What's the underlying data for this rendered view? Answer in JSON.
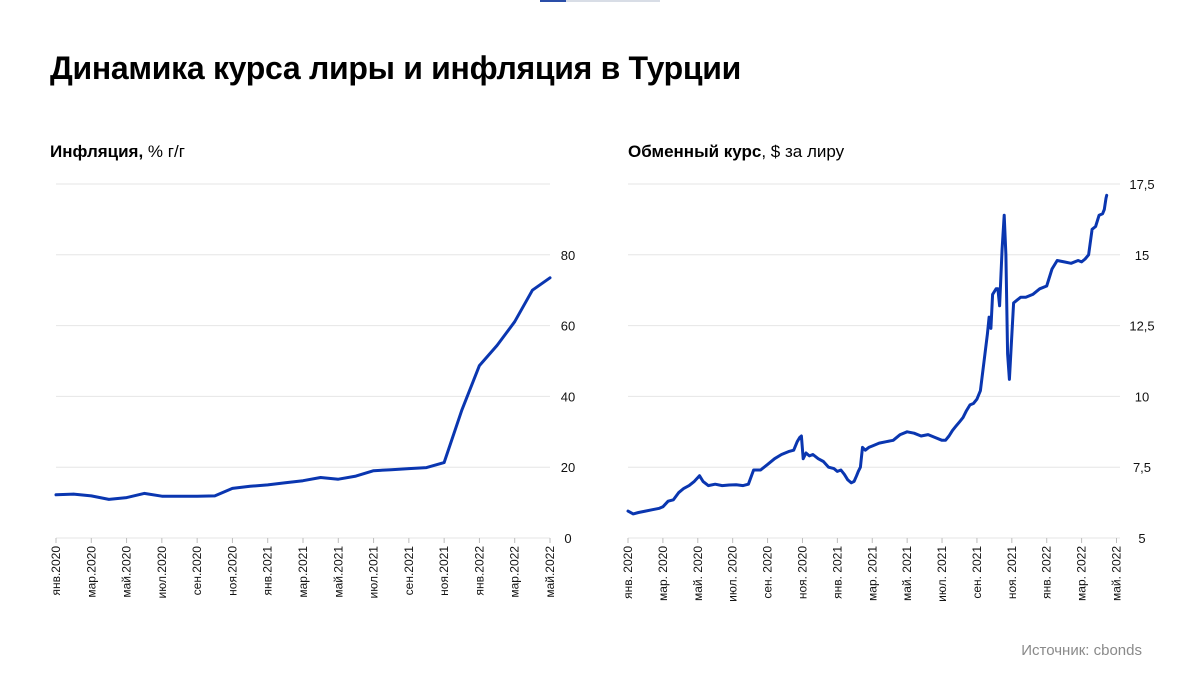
{
  "header": {
    "title": "Динамика курса лиры и инфляция в Турции"
  },
  "panels": {
    "left": {
      "title_bold": "Инфляция,",
      "title_rest": " % г/г"
    },
    "right": {
      "title_bold": "Обменный курс",
      "title_rest": ", $ за лиру"
    }
  },
  "footer": {
    "source": "Источник: cbonds"
  },
  "colors": {
    "line": "#0a36b0",
    "grid": "#e6e6e6",
    "text": "#111111",
    "muted": "#8a8a8a"
  },
  "chart_data": [
    {
      "type": "line",
      "title": "Инфляция, % г/г",
      "x_tick_labels": [
        "янв.2020",
        "мар.2020",
        "май.2020",
        "июл.2020",
        "сен.2020",
        "ноя.2020",
        "янв.2021",
        "мар.2021",
        "май.2021",
        "июл.2021",
        "сен.2021",
        "ноя.2021",
        "янв.2022",
        "мар.2022",
        "май.2022"
      ],
      "y_ticks": [
        0,
        20,
        40,
        60,
        80
      ],
      "ylim": [
        0,
        100
      ],
      "grid": "horizontal",
      "series": [
        {
          "x": [
            "янв.2020",
            "фев.2020",
            "мар.2020",
            "апр.2020",
            "май.2020",
            "июн.2020",
            "июл.2020",
            "авг.2020",
            "сен.2020",
            "окт.2020",
            "ноя.2020",
            "дек.2020",
            "янв.2021",
            "фев.2021",
            "мар.2021",
            "апр.2021",
            "май.2021",
            "июн.2021",
            "июл.2021",
            "авг.2021",
            "сен.2021",
            "окт.2021",
            "ноя.2021",
            "дек.2021",
            "янв.2022",
            "фев.2022",
            "мар.2022",
            "апр.2022",
            "май.2022"
          ],
          "values": [
            12.2,
            12.4,
            11.9,
            10.9,
            11.4,
            12.6,
            11.8,
            11.8,
            11.8,
            11.9,
            14.0,
            14.6,
            15.0,
            15.6,
            16.2,
            17.1,
            16.6,
            17.5,
            19.0,
            19.3,
            19.6,
            19.9,
            21.3,
            36.1,
            48.7,
            54.4,
            61.1,
            70.0,
            73.5
          ]
        }
      ]
    },
    {
      "type": "line",
      "title": "Обменный курс, $ за лиру",
      "x_tick_labels": [
        "янв. 2020",
        "мар. 2020",
        "май. 2020",
        "июл. 2020",
        "сен. 2020",
        "ноя. 2020",
        "янв. 2021",
        "мар. 2021",
        "май. 2021",
        "июл. 2021",
        "сен. 2021",
        "ноя. 2021",
        "янв. 2022",
        "мар. 2022",
        "май. 2022"
      ],
      "y_ticks": [
        5,
        7.5,
        10,
        12.5,
        15,
        17.5
      ],
      "y_tick_labels": [
        "5",
        "7,5",
        "10",
        "12,5",
        "15",
        "17,5"
      ],
      "ylim": [
        5,
        17.5
      ],
      "grid": "horizontal",
      "series": [
        {
          "x": [
            "янв. 2020",
            "мар. 2020",
            "май. 2020",
            "июл. 2020",
            "сен. 2020",
            "ноя. 2020",
            "янв. 2021",
            "мар. 2021",
            "май. 2021",
            "июл. 2021",
            "сен. 2021",
            "ноя. 2021",
            "янв. 2022",
            "мар. 2022",
            "май. 2022"
          ],
          "points": [
            [
              0.0,
              5.95
            ],
            [
              0.15,
              5.85
            ],
            [
              0.3,
              5.9
            ],
            [
              0.5,
              5.95
            ],
            [
              0.7,
              6.0
            ],
            [
              0.9,
              6.05
            ],
            [
              1.0,
              6.1
            ],
            [
              1.15,
              6.3
            ],
            [
              1.3,
              6.35
            ],
            [
              1.45,
              6.6
            ],
            [
              1.6,
              6.75
            ],
            [
              1.75,
              6.85
            ],
            [
              1.9,
              7.0
            ],
            [
              2.05,
              7.2
            ],
            [
              2.15,
              7.0
            ],
            [
              2.3,
              6.85
            ],
            [
              2.5,
              6.9
            ],
            [
              2.7,
              6.85
            ],
            [
              2.9,
              6.87
            ],
            [
              3.1,
              6.88
            ],
            [
              3.3,
              6.85
            ],
            [
              3.45,
              6.9
            ],
            [
              3.6,
              7.4
            ],
            [
              3.8,
              7.4
            ],
            [
              4.0,
              7.6
            ],
            [
              4.2,
              7.8
            ],
            [
              4.4,
              7.95
            ],
            [
              4.6,
              8.05
            ],
            [
              4.75,
              8.1
            ],
            [
              4.85,
              8.4
            ],
            [
              4.92,
              8.55
            ],
            [
              4.97,
              8.6
            ],
            [
              5.02,
              7.8
            ],
            [
              5.1,
              8.0
            ],
            [
              5.2,
              7.9
            ],
            [
              5.3,
              7.95
            ],
            [
              5.45,
              7.8
            ],
            [
              5.6,
              7.7
            ],
            [
              5.75,
              7.5
            ],
            [
              5.9,
              7.45
            ],
            [
              6.0,
              7.35
            ],
            [
              6.1,
              7.4
            ],
            [
              6.2,
              7.25
            ],
            [
              6.3,
              7.05
            ],
            [
              6.4,
              6.95
            ],
            [
              6.48,
              7.0
            ],
            [
              6.55,
              7.2
            ],
            [
              6.6,
              7.35
            ],
            [
              6.66,
              7.5
            ],
            [
              6.72,
              8.2
            ],
            [
              6.8,
              8.1
            ],
            [
              6.9,
              8.2
            ],
            [
              7.0,
              8.25
            ],
            [
              7.2,
              8.35
            ],
            [
              7.4,
              8.4
            ],
            [
              7.6,
              8.45
            ],
            [
              7.8,
              8.65
            ],
            [
              8.0,
              8.75
            ],
            [
              8.2,
              8.7
            ],
            [
              8.4,
              8.6
            ],
            [
              8.6,
              8.65
            ],
            [
              8.8,
              8.55
            ],
            [
              9.0,
              8.45
            ],
            [
              9.1,
              8.45
            ],
            [
              9.2,
              8.6
            ],
            [
              9.3,
              8.8
            ],
            [
              9.4,
              8.95
            ],
            [
              9.5,
              9.1
            ],
            [
              9.6,
              9.25
            ],
            [
              9.7,
              9.5
            ],
            [
              9.8,
              9.7
            ],
            [
              9.9,
              9.75
            ],
            [
              10.0,
              9.9
            ],
            [
              10.1,
              10.2
            ],
            [
              10.2,
              11.2
            ],
            [
              10.3,
              12.2
            ],
            [
              10.35,
              12.8
            ],
            [
              10.4,
              12.4
            ],
            [
              10.45,
              13.6
            ],
            [
              10.55,
              13.8
            ],
            [
              10.6,
              13.8
            ],
            [
              10.65,
              13.2
            ],
            [
              10.72,
              15.2
            ],
            [
              10.78,
              16.4
            ],
            [
              10.83,
              15.0
            ],
            [
              10.88,
              11.5
            ],
            [
              10.93,
              10.6
            ],
            [
              10.98,
              11.7
            ],
            [
              11.05,
              13.3
            ],
            [
              11.15,
              13.4
            ],
            [
              11.25,
              13.5
            ],
            [
              11.4,
              13.5
            ],
            [
              11.6,
              13.6
            ],
            [
              11.8,
              13.8
            ],
            [
              12.0,
              13.9
            ],
            [
              12.15,
              14.5
            ],
            [
              12.3,
              14.8
            ],
            [
              12.5,
              14.75
            ],
            [
              12.7,
              14.7
            ],
            [
              12.9,
              14.8
            ],
            [
              13.0,
              14.75
            ],
            [
              13.1,
              14.85
            ],
            [
              13.2,
              15.0
            ],
            [
              13.3,
              15.9
            ],
            [
              13.4,
              16.0
            ],
            [
              13.5,
              16.4
            ],
            [
              13.6,
              16.45
            ],
            [
              13.65,
              16.6
            ],
            [
              13.7,
              17.0
            ],
            [
              13.72,
              17.1
            ]
          ]
        }
      ]
    }
  ]
}
